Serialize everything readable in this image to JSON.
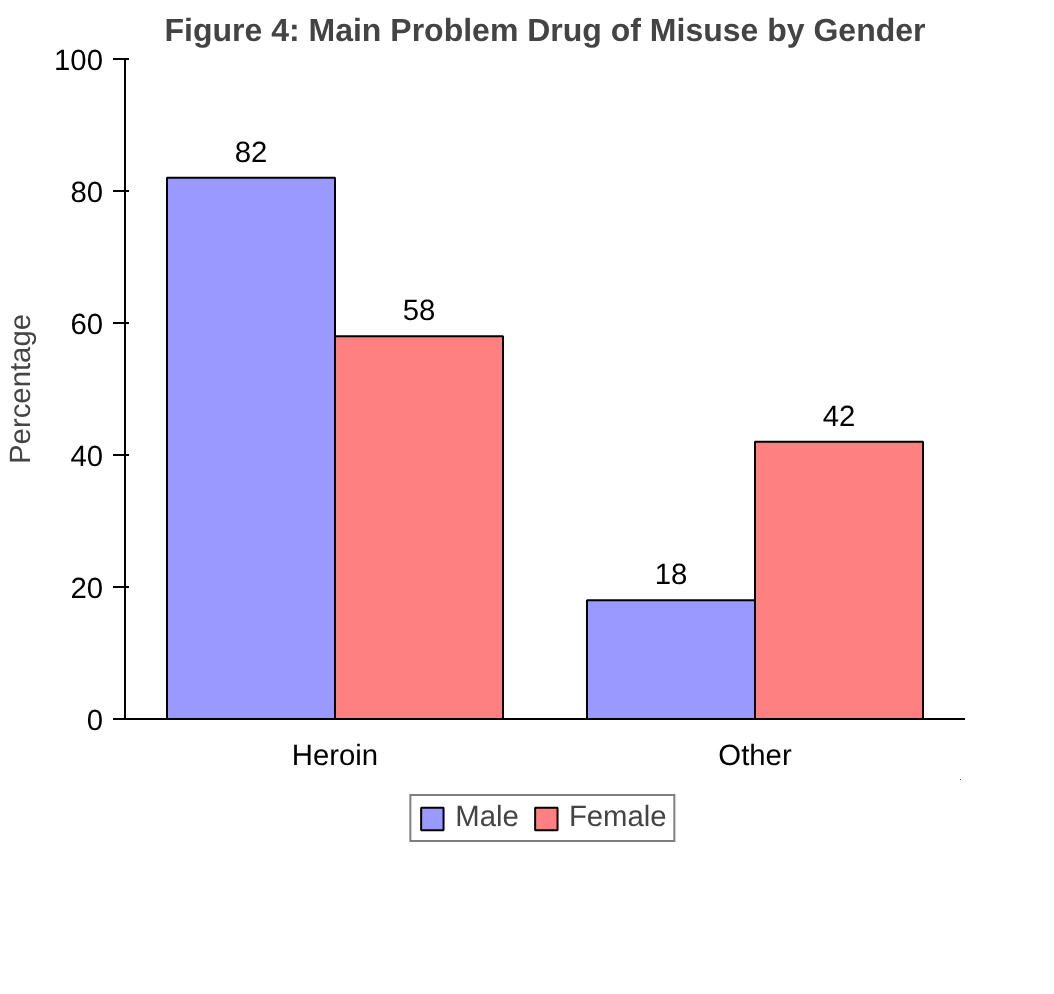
{
  "chart_data": {
    "type": "bar",
    "title": "Figure 4: Main Problem Drug of Misuse by Gender",
    "ylabel": "Percentage",
    "categories": [
      "Heroin",
      "Other"
    ],
    "series": [
      {
        "name": "Male",
        "color": "#9999ff",
        "values": [
          82,
          18
        ]
      },
      {
        "name": "Female",
        "color": "#ff8080",
        "values": [
          58,
          42
        ]
      }
    ],
    "ylim": [
      0,
      100
    ],
    "yticks": [
      0,
      20,
      40,
      60,
      80,
      100
    ],
    "grid": false,
    "legend": "bottom",
    "data_labels": true
  }
}
